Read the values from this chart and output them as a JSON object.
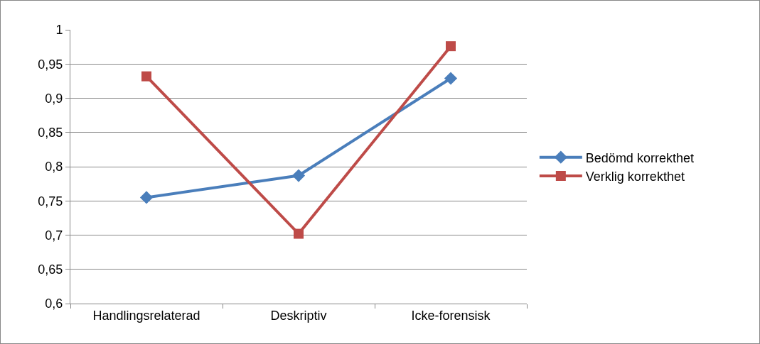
{
  "chart_data": {
    "type": "line",
    "categories": [
      "Handlingsrelaterad",
      "Deskriptiv",
      "Icke-forensisk"
    ],
    "series": [
      {
        "name": "Bedömd korrekthet",
        "color": "#4a7ebb",
        "marker": "diamond",
        "values": [
          0.755,
          0.787,
          0.929
        ]
      },
      {
        "name": "Verklig korrekthet",
        "color": "#be4b48",
        "marker": "square",
        "values": [
          0.932,
          0.702,
          0.976
        ]
      }
    ],
    "ylim": [
      0.6,
      1
    ],
    "yticks": [
      {
        "value": 0.6,
        "label": "0,6"
      },
      {
        "value": 0.65,
        "label": "0,65"
      },
      {
        "value": 0.7,
        "label": "0,7"
      },
      {
        "value": 0.75,
        "label": "0,75"
      },
      {
        "value": 0.8,
        "label": "0,8"
      },
      {
        "value": 0.85,
        "label": "0,85"
      },
      {
        "value": 0.9,
        "label": "0,9"
      },
      {
        "value": 0.95,
        "label": "0,95"
      },
      {
        "value": 1,
        "label": "1"
      }
    ],
    "grid": "y",
    "legend": "right",
    "line_style": "solid"
  }
}
